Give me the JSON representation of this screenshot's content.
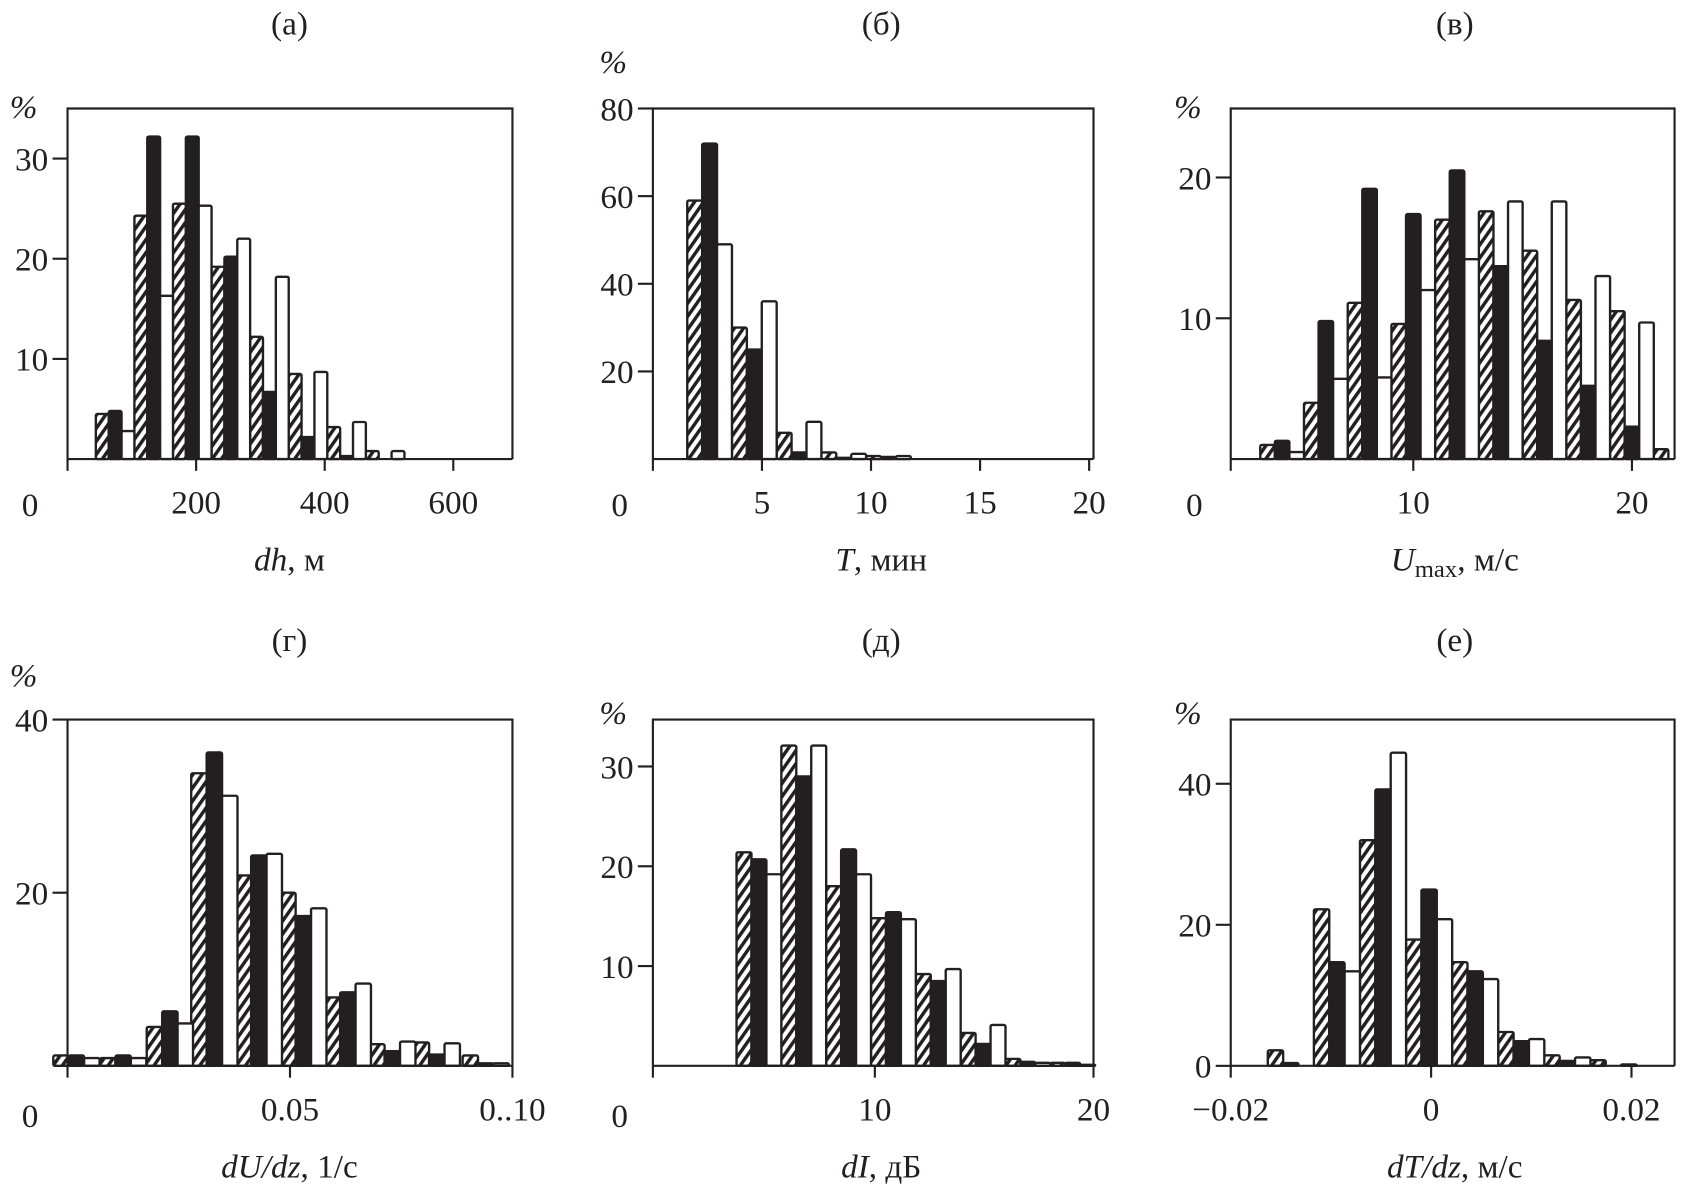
{
  "chart_data": [
    {
      "type": "bar",
      "panel_label": "(а)",
      "ylabel": "%",
      "xlabel_var": "dh",
      "xlabel_sub": "",
      "xlabel_unit": ", м",
      "xlim": [
        0,
        692
      ],
      "ylim": [
        0,
        35
      ],
      "bin_width": 60,
      "xticks": [
        200,
        400,
        600
      ],
      "xtick_labels": [
        "200",
        "400",
        "600"
      ],
      "origin_label": "0",
      "yticks": [
        10,
        20,
        30
      ],
      "ytick_labels": [
        "10",
        "20",
        "30"
      ],
      "x": [
        74,
        134,
        194,
        254,
        314,
        374,
        434,
        494
      ],
      "series": [
        {
          "style": "hatched",
          "values": [
            4.5,
            24.3,
            25.5,
            19.2,
            12.2,
            8.5,
            3.2,
            0.8
          ]
        },
        {
          "style": "solid",
          "values": [
            4.8,
            32.2,
            32.2,
            20.2,
            6.7,
            2.2,
            0.3,
            0
          ]
        },
        {
          "style": "open",
          "values": [
            2.8,
            16.3,
            25.3,
            22,
            18.2,
            8.7,
            3.7,
            0.8
          ]
        }
      ]
    },
    {
      "type": "bar",
      "panel_label": "(б)",
      "ylabel": "%",
      "xlabel_var": "T",
      "xlabel_sub": "",
      "xlabel_unit": ", мин",
      "xlim": [
        0,
        20.2
      ],
      "ylim": [
        0,
        80
      ],
      "bin_width": 2.05,
      "xticks": [
        5,
        10,
        15,
        20
      ],
      "xtick_labels": [
        "5",
        "10",
        "15",
        "20"
      ],
      "origin_label": "0",
      "yticks": [
        20,
        40,
        60,
        80
      ],
      "ytick_labels": [
        "20",
        "40",
        "60",
        "80"
      ],
      "x": [
        2.6,
        4.65,
        6.7,
        8.75,
        10.8
      ],
      "series": [
        {
          "style": "hatched",
          "values": [
            59,
            30,
            6,
            1.5,
            0.7
          ]
        },
        {
          "style": "solid",
          "values": [
            72,
            25,
            1.5,
            0.3,
            0.5
          ]
        },
        {
          "style": "open",
          "values": [
            49,
            36,
            8.5,
            1.2,
            0.7
          ]
        }
      ]
    },
    {
      "type": "bar",
      "panel_label": "(в)",
      "ylabel": "%",
      "xlabel_var": "U",
      "xlabel_sub": "max",
      "xlabel_unit": ", м/с",
      "xlim": [
        1.65,
        21.95
      ],
      "ylim": [
        0,
        24.9
      ],
      "bin_width": 2,
      "xticks": [
        10,
        20
      ],
      "xtick_labels": [
        "10",
        "20"
      ],
      "origin_label": "0",
      "yticks": [
        10,
        20
      ],
      "ytick_labels": [
        "10",
        "20"
      ],
      "x": [
        4,
        6,
        8,
        10,
        12,
        14,
        16,
        18,
        20,
        22
      ],
      "series": [
        {
          "style": "hatched",
          "values": [
            1.0,
            4.0,
            11.1,
            9.6,
            17.0,
            17.6,
            14.8,
            11.3,
            10.5,
            0.7
          ]
        },
        {
          "style": "solid",
          "values": [
            1.3,
            9.8,
            19.2,
            17.4,
            20.5,
            13.7,
            8.4,
            5.2,
            2.3,
            0
          ]
        },
        {
          "style": "open",
          "values": [
            0.5,
            5.7,
            5.8,
            12.0,
            14.2,
            18.3,
            18.3,
            13.0,
            9.7,
            0.7
          ]
        }
      ]
    },
    {
      "type": "bar",
      "panel_label": "(г)",
      "ylabel": "%",
      "xlabel_var": "dU/dz",
      "xlabel_sub": "",
      "xlabel_unit": ", 1/с",
      "xlim": [
        0,
        0.1
      ],
      "ylim": [
        0,
        40
      ],
      "bin_width": 0.0104,
      "xticks": [
        0.05,
        0.1
      ],
      "xtick_labels": [
        "0.05",
        "0..10"
      ],
      "origin_label": "0",
      "yticks": [
        20,
        40
      ],
      "ytick_labels": [
        "20",
        "40"
      ],
      "x": [
        0.002,
        0.0125,
        0.023,
        0.033,
        0.043,
        0.053,
        0.063,
        0.073,
        0.083,
        0.094
      ],
      "series": [
        {
          "style": "hatched",
          "values": [
            1.2,
            0.9,
            4.5,
            33.8,
            22,
            20,
            7.9,
            2.5,
            2.7,
            1.2
          ]
        },
        {
          "style": "solid",
          "values": [
            1.2,
            1.2,
            6.3,
            36.2,
            24.3,
            17.3,
            8.5,
            1.7,
            1.3,
            0.3
          ]
        },
        {
          "style": "open",
          "values": [
            0.9,
            0.9,
            4.9,
            31.2,
            24.5,
            18.2,
            9.5,
            2.8,
            2.6,
            0.3
          ]
        }
      ]
    },
    {
      "type": "bar",
      "panel_label": "(д)",
      "ylabel": "%",
      "xlabel_var": "dI",
      "xlabel_sub": "",
      "xlabel_unit": ", дБ",
      "xlim": [
        -0.15,
        20.0
      ],
      "ylim": [
        0,
        34.7
      ],
      "bin_width": 2.05,
      "xticks": [
        10,
        20
      ],
      "xtick_labels": [
        "10",
        "20"
      ],
      "origin_label": "0",
      "yticks": [
        10,
        20,
        30
      ],
      "ytick_labels": [
        "10",
        "20",
        "30"
      ],
      "x": [
        4.7,
        6.75,
        8.8,
        10.85,
        12.9,
        14.95,
        17,
        19.05
      ],
      "series": [
        {
          "style": "hatched",
          "values": [
            21.4,
            32.1,
            18,
            14.8,
            9.2,
            3.3,
            0.7,
            0.3
          ]
        },
        {
          "style": "solid",
          "values": [
            20.7,
            29,
            21.7,
            15.4,
            8.5,
            2.2,
            0.4,
            0.3
          ]
        },
        {
          "style": "open",
          "values": [
            19.2,
            32.1,
            19.2,
            14.7,
            9.7,
            4.1,
            0.3,
            0.1
          ]
        }
      ]
    },
    {
      "type": "bar",
      "panel_label": "(е)",
      "ylabel": "%",
      "xlabel_var": "dT/dz",
      "xlabel_sub": "",
      "xlabel_unit": ", м/с",
      "xlim": [
        -0.02,
        0.0243
      ],
      "ylim": [
        0,
        49.1
      ],
      "bin_width": 0.0046,
      "xticks": [
        -0.02,
        0,
        0.02
      ],
      "xtick_labels": [
        "−0.02",
        "0",
        "0.02"
      ],
      "origin_label": "",
      "yticks": [
        0,
        20,
        40
      ],
      "ytick_labels": [
        "0",
        "20",
        "40"
      ],
      "x": [
        -0.014,
        -0.0094,
        -0.0048,
        -0.0002,
        0.0044,
        0.009,
        0.0136,
        0.0182
      ],
      "series": [
        {
          "style": "hatched",
          "values": [
            2.2,
            22.2,
            32,
            17.9,
            14.7,
            4.8,
            1.5,
            0.8
          ]
        },
        {
          "style": "solid",
          "values": [
            0.4,
            14.7,
            39.2,
            25,
            13.4,
            3.5,
            0.7,
            0
          ]
        },
        {
          "style": "open",
          "values": [
            0,
            13.4,
            44.4,
            20.8,
            12.3,
            3.8,
            1.2,
            0.2
          ]
        }
      ]
    }
  ]
}
